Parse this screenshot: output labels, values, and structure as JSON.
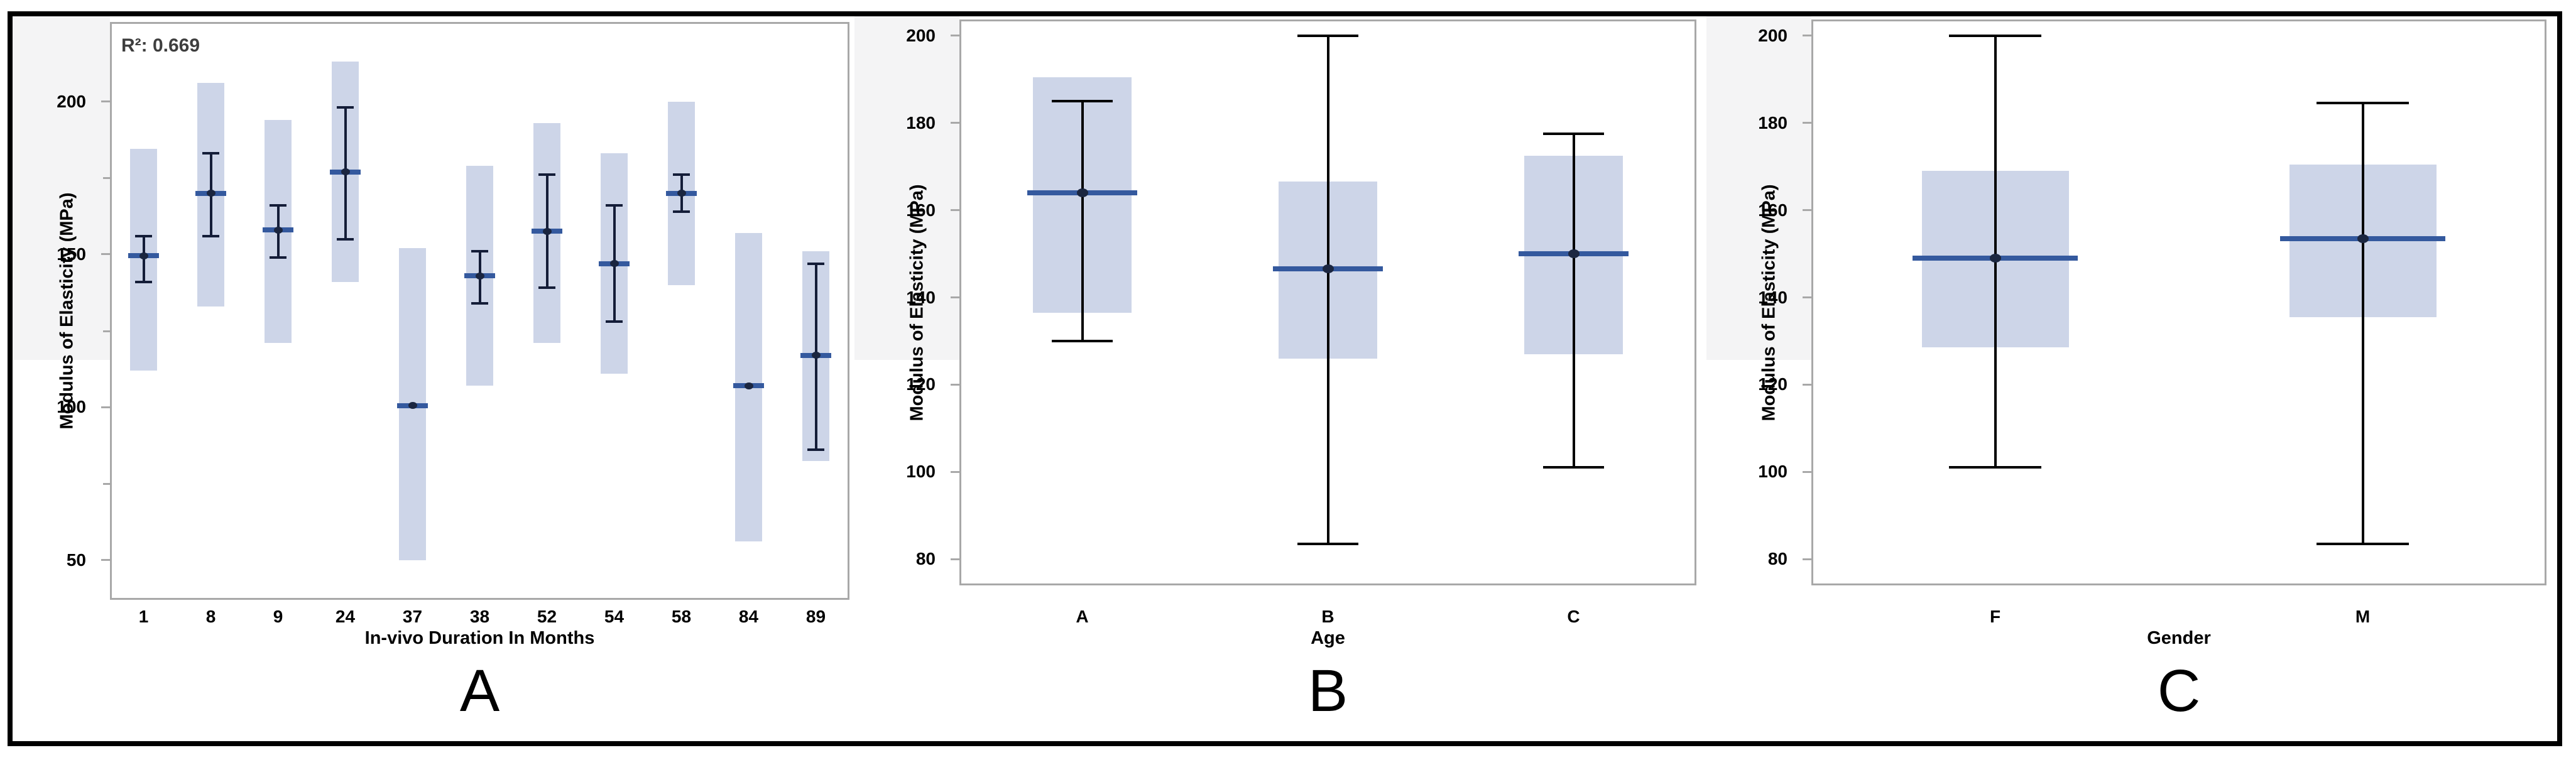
{
  "figure": {
    "colors": {
      "border": "#000000",
      "frame": "#a8a8a8",
      "box_fill": "#cdd5e8",
      "mean_line": "#34599e",
      "error_bar_panel_a": "#141d38",
      "whisker_panel_bc": "#000000",
      "mean_dot": "#1b2640",
      "gutter_strip": "#f4f4f5",
      "annotation_text": "#3e3e3e",
      "text": "#000000"
    }
  },
  "chart_data": [
    {
      "type": "box",
      "panel_label": "A",
      "ylabel": "Modulus of Elasticity (MPa)",
      "xlabel": "In-vivo Duration In Months",
      "annotation": "R²: 0.669",
      "ylim": [
        37,
        226
      ],
      "yticks": [
        200,
        150,
        100,
        50
      ],
      "yticks_minor": [
        175,
        125,
        75
      ],
      "grid": false,
      "legend": null,
      "categories": [
        "1",
        "8",
        "9",
        "24",
        "37",
        "38",
        "52",
        "54",
        "58",
        "84",
        "89"
      ],
      "series": [
        {
          "category": "1",
          "box": [
            112,
            184.5
          ],
          "mean": 149.5,
          "whisker": [
            141,
            156
          ]
        },
        {
          "category": "8",
          "box": [
            133,
            206
          ],
          "mean": 170,
          "whisker": [
            156,
            183
          ]
        },
        {
          "category": "9",
          "box": [
            121,
            194
          ],
          "mean": 158,
          "whisker": [
            149,
            166
          ]
        },
        {
          "category": "24",
          "box": [
            141,
            213
          ],
          "mean": 177,
          "whisker": [
            155,
            198
          ]
        },
        {
          "category": "37",
          "box": [
            50,
            152
          ],
          "mean": 100.5,
          "whisker": null
        },
        {
          "category": "38",
          "box": [
            107,
            179
          ],
          "mean": 143,
          "whisker": [
            134,
            151
          ]
        },
        {
          "category": "52",
          "box": [
            121,
            193
          ],
          "mean": 157.5,
          "whisker": [
            139,
            176
          ]
        },
        {
          "category": "54",
          "box": [
            111,
            183
          ],
          "mean": 147,
          "whisker": [
            128,
            166
          ]
        },
        {
          "category": "58",
          "box": [
            140,
            200
          ],
          "mean": 170,
          "whisker": [
            164,
            176
          ]
        },
        {
          "category": "84",
          "box": [
            56,
            157
          ],
          "mean": 107,
          "whisker": null
        },
        {
          "category": "89",
          "box": [
            82.5,
            151
          ],
          "mean": 117,
          "whisker": [
            86,
            147
          ]
        }
      ]
    },
    {
      "type": "box",
      "panel_label": "B",
      "ylabel": "Modulus of Elasticity (MPa)",
      "xlabel": "Age",
      "annotation": null,
      "ylim": [
        74,
        203.7
      ],
      "yticks": [
        200,
        180,
        160,
        140,
        120,
        100,
        80
      ],
      "yticks_minor": [],
      "grid": false,
      "legend": null,
      "categories": [
        "A",
        "B",
        "C"
      ],
      "series": [
        {
          "category": "A",
          "box": [
            136.5,
            190.5
          ],
          "mean": 164,
          "whisker": [
            130,
            185
          ]
        },
        {
          "category": "B",
          "box": [
            126,
            166.5
          ],
          "mean": 146.5,
          "whisker": [
            83.5,
            200
          ]
        },
        {
          "category": "C",
          "box": [
            127,
            172.5
          ],
          "mean": 150,
          "whisker": [
            101,
            177.5
          ]
        }
      ]
    },
    {
      "type": "box",
      "panel_label": "C",
      "ylabel": "Modulus of Elasticity (MPa)",
      "xlabel": "Gender",
      "annotation": null,
      "ylim": [
        74,
        203.7
      ],
      "yticks": [
        200,
        180,
        160,
        140,
        120,
        100,
        80
      ],
      "yticks_minor": [],
      "grid": false,
      "legend": null,
      "categories": [
        "F",
        "M"
      ],
      "series": [
        {
          "category": "F",
          "box": [
            128.5,
            169
          ],
          "mean": 149,
          "whisker": [
            101,
            200
          ]
        },
        {
          "category": "M",
          "box": [
            135.5,
            170.5
          ],
          "mean": 153.5,
          "whisker": [
            83.5,
            184.5
          ]
        }
      ]
    }
  ]
}
